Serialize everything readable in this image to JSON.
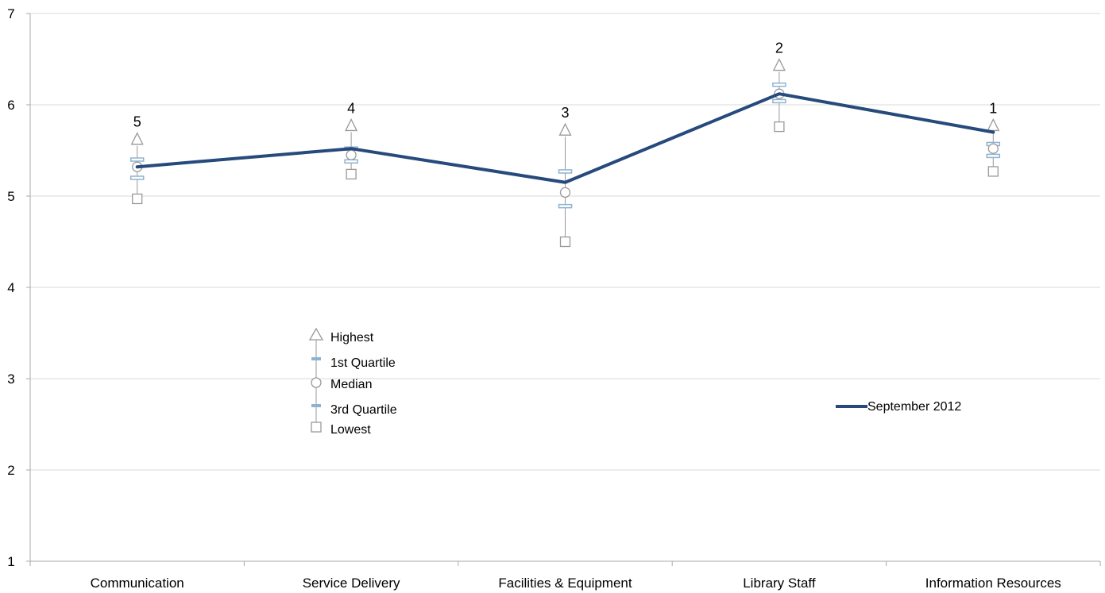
{
  "chart_data": {
    "type": "line",
    "categories": [
      "Communication",
      "Service Delivery",
      "Facilities & Equipment",
      "Library Staff",
      "Information Resources"
    ],
    "y_ticks": [
      "1",
      "2",
      "3",
      "4",
      "5",
      "6",
      "7"
    ],
    "ylim": [
      1,
      7
    ],
    "grid": true,
    "series": [
      {
        "name": "September 2012",
        "values": [
          5.32,
          5.52,
          5.15,
          6.12,
          5.7
        ],
        "color": "#264a7c"
      }
    ],
    "distribution": {
      "highest": [
        5.62,
        5.77,
        5.72,
        6.43,
        5.77
      ],
      "q1": [
        5.4,
        5.52,
        5.27,
        6.22,
        5.57
      ],
      "median": [
        5.32,
        5.45,
        5.04,
        6.12,
        5.52
      ],
      "q3": [
        5.2,
        5.38,
        4.89,
        6.04,
        5.44
      ],
      "lowest": [
        4.97,
        5.24,
        4.5,
        5.76,
        5.27
      ],
      "marker_color": "#999999",
      "quartile_color": "#8db3d2"
    },
    "rank_labels": [
      "5",
      "4",
      "3",
      "2",
      "1"
    ],
    "marker_legend": {
      "highest": "Highest",
      "q1": "1st Quartile",
      "median": "Median",
      "q3": "3rd Quartile",
      "lowest": "Lowest"
    },
    "series_legend_placement": "right-middle"
  }
}
